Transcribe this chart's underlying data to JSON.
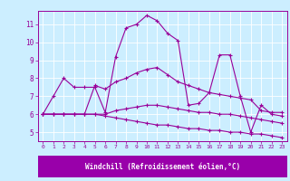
{
  "xlabel": "Windchill (Refroidissement éolien,°C)",
  "x_ticks": [
    0,
    1,
    2,
    3,
    4,
    5,
    6,
    7,
    8,
    9,
    10,
    11,
    12,
    13,
    14,
    15,
    16,
    17,
    18,
    19,
    20,
    21,
    22,
    23
  ],
  "ylim": [
    4.5,
    11.75
  ],
  "xlim": [
    -0.5,
    23.5
  ],
  "y_ticks": [
    5,
    6,
    7,
    8,
    9,
    10,
    11
  ],
  "background_color": "#cceeff",
  "line_color": "#990099",
  "xlabel_bg": "#9900aa",
  "xlabel_fg": "#ffffff",
  "curves": [
    [
      6.0,
      7.0,
      8.0,
      7.5,
      7.5,
      7.5,
      6.1,
      9.2,
      10.8,
      11.0,
      11.5,
      11.2,
      10.5,
      10.1,
      6.5,
      6.6,
      7.2,
      9.3,
      9.3,
      7.0,
      5.0,
      6.5,
      6.0,
      5.9
    ],
    [
      6.0,
      6.0,
      6.0,
      6.0,
      6.0,
      7.6,
      7.4,
      7.8,
      8.0,
      8.3,
      8.5,
      8.6,
      8.2,
      7.8,
      7.6,
      7.4,
      7.2,
      7.1,
      7.0,
      6.9,
      6.8,
      6.2,
      6.1,
      6.1
    ],
    [
      6.0,
      6.0,
      6.0,
      6.0,
      6.0,
      6.0,
      6.0,
      6.2,
      6.3,
      6.4,
      6.5,
      6.5,
      6.4,
      6.3,
      6.2,
      6.1,
      6.1,
      6.0,
      6.0,
      5.9,
      5.8,
      5.7,
      5.6,
      5.5
    ],
    [
      6.0,
      6.0,
      6.0,
      6.0,
      6.0,
      6.0,
      5.9,
      5.8,
      5.7,
      5.6,
      5.5,
      5.4,
      5.4,
      5.3,
      5.2,
      5.2,
      5.1,
      5.1,
      5.0,
      5.0,
      4.9,
      4.9,
      4.8,
      4.7
    ]
  ]
}
